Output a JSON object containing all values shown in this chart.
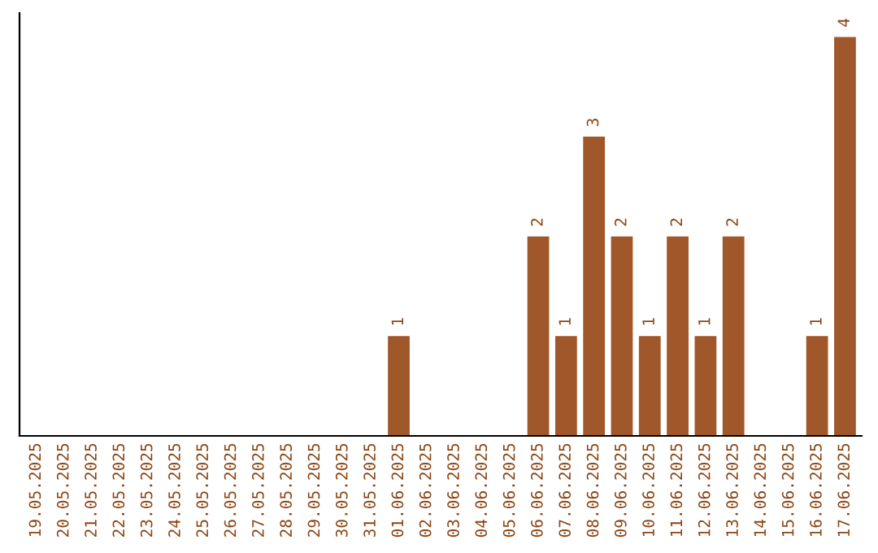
{
  "chart_data": {
    "type": "bar",
    "categories": [
      "19.05.2025",
      "20.05.2025",
      "21.05.2025",
      "22.05.2025",
      "23.05.2025",
      "24.05.2025",
      "25.05.2025",
      "26.05.2025",
      "27.05.2025",
      "28.05.2025",
      "29.05.2025",
      "30.05.2025",
      "31.05.2025",
      "01.06.2025",
      "02.06.2025",
      "03.06.2025",
      "04.06.2025",
      "05.06.2025",
      "06.06.2025",
      "07.06.2025",
      "08.06.2025",
      "09.06.2025",
      "10.06.2025",
      "11.06.2025",
      "12.06.2025",
      "13.06.2025",
      "14.06.2025",
      "15.06.2025",
      "16.06.2025",
      "17.06.2025"
    ],
    "values": [
      null,
      null,
      null,
      null,
      null,
      null,
      null,
      null,
      null,
      null,
      null,
      null,
      null,
      1,
      null,
      null,
      null,
      null,
      2,
      1,
      3,
      2,
      1,
      2,
      1,
      2,
      null,
      null,
      1,
      4
    ],
    "color": "#a0582a",
    "data_labels": true,
    "tick_labels": "x",
    "grid": false,
    "legend": false
  }
}
